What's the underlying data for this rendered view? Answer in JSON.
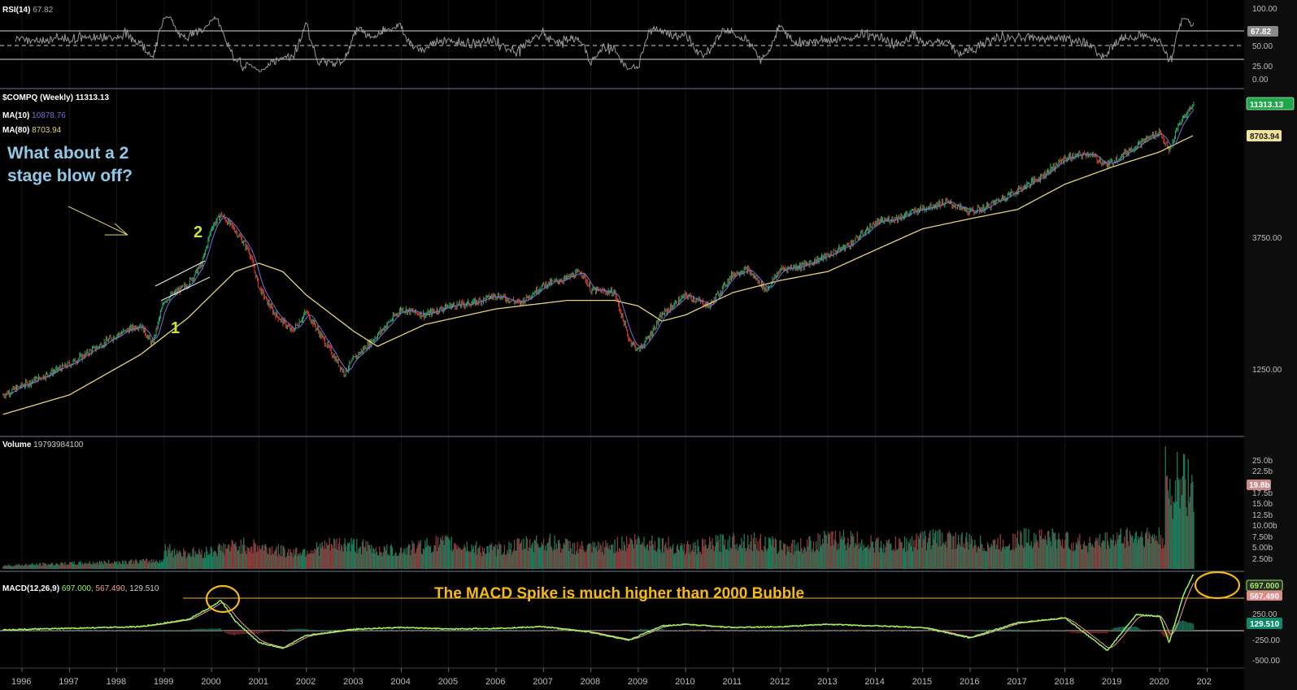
{
  "rsi": {
    "name": "RSI(14)",
    "value": "67.82",
    "ticks": [
      "100.00",
      "50.00",
      "25.00",
      "0.00"
    ],
    "badge": "67.82"
  },
  "price": {
    "name": "$COMPQ (Weekly)",
    "value": "11313.13",
    "ma10_name": "MA(10)",
    "ma10_value": "10878.76",
    "ma80_name": "MA(80)",
    "ma80_value": "8703.94",
    "ticks": [
      "3750.00",
      "1250.00"
    ],
    "badge_price": "11313.13",
    "badge_ma80": "8703.94"
  },
  "volume": {
    "name": "Volume",
    "value": "19793984100",
    "ticks": [
      "25.0b",
      "22.5b",
      "17.5b",
      "15.0b",
      "12.5b",
      "10.00b",
      "7.50b",
      "5.00b",
      "2.50b"
    ],
    "badge": "19.8b"
  },
  "macd": {
    "name": "MACD(12,26,9)",
    "macd_value": "697.000",
    "signal_value": "567.490",
    "hist_value": "129.510",
    "sep1": ",",
    "sep2": ", ",
    "ticks": [
      "250.00",
      "-250.00",
      "-500.00"
    ],
    "badge_macd": "697.000",
    "badge_signal": "567.490",
    "badge_hist": "129.510"
  },
  "annotations": {
    "blowoff_line1": "What about a 2",
    "blowoff_line2": "stage blow off?",
    "stage1": "1",
    "stage2": "2",
    "macd_note": "The MACD Spike is much higher than 2000 Bubble"
  },
  "colors": {
    "up": "#1fae6c",
    "down": "#d63b2f",
    "ma10": "#7b6fd8",
    "ma80": "#e6d27a",
    "macd": "#9cf25a",
    "signal": "#f2a0a0",
    "annotation_orange": "#f3b81c"
  },
  "chart_data": {
    "type": "line",
    "x_axis_years": [
      "1996",
      "1997",
      "1998",
      "1999",
      "2000",
      "2001",
      "2002",
      "2003",
      "2004",
      "2005",
      "2006",
      "2007",
      "2008",
      "2009",
      "2010",
      "2011",
      "2012",
      "2013",
      "2014",
      "2015",
      "2016",
      "2017",
      "2018",
      "2019",
      "2020",
      "202"
    ],
    "series": [
      {
        "name": "$COMPQ (Weekly)",
        "x": [
          1995.6,
          1996.0,
          1996.5,
          1997.0,
          1997.5,
          1998.0,
          1998.5,
          1998.75,
          1999.0,
          1999.5,
          1999.8,
          2000.0,
          2000.2,
          2000.5,
          2000.8,
          2001.0,
          2001.3,
          2001.7,
          2002.0,
          2002.5,
          2002.8,
          2003.0,
          2003.5,
          2004.0,
          2004.5,
          2005.0,
          2005.5,
          2006.0,
          2006.5,
          2007.0,
          2007.5,
          2007.8,
          2008.0,
          2008.5,
          2008.8,
          2009.0,
          2009.2,
          2009.5,
          2010.0,
          2010.5,
          2011.0,
          2011.3,
          2011.7,
          2012.0,
          2012.5,
          2013.0,
          2013.5,
          2014.0,
          2014.5,
          2015.0,
          2015.5,
          2016.0,
          2016.3,
          2016.8,
          2017.0,
          2017.5,
          2018.0,
          2018.5,
          2018.9,
          2019.0,
          2019.5,
          2020.0,
          2020.2,
          2020.4,
          2020.7
        ],
        "values": [
          1000,
          1080,
          1180,
          1290,
          1460,
          1650,
          1800,
          1520,
          2200,
          2520,
          3000,
          4050,
          4500,
          3950,
          3300,
          2450,
          2000,
          1700,
          2000,
          1450,
          1200,
          1350,
          1650,
          2050,
          1950,
          2100,
          2150,
          2300,
          2150,
          2500,
          2650,
          2800,
          2400,
          2350,
          1600,
          1450,
          1600,
          1950,
          2300,
          2100,
          2750,
          2850,
          2400,
          2850,
          2950,
          3200,
          3550,
          4200,
          4400,
          4750,
          5000,
          4600,
          4750,
          5300,
          5500,
          6200,
          7200,
          7500,
          6800,
          7000,
          8000,
          9000,
          7600,
          9500,
          11300
        ]
      },
      {
        "name": "MA(80)",
        "x": [
          1995.6,
          1997.0,
          1998.5,
          1999.5,
          2000.5,
          2001.0,
          2001.5,
          2002.0,
          2003.0,
          2003.5,
          2004.5,
          2006.0,
          2007.5,
          2008.5,
          2009.0,
          2009.5,
          2010.0,
          2011.0,
          2012.0,
          2013.0,
          2014.0,
          2015.0,
          2016.0,
          2017.0,
          2018.0,
          2019.0,
          2020.0,
          2020.7
        ],
        "values": [
          850,
          1000,
          1400,
          1900,
          2800,
          3000,
          2800,
          2300,
          1700,
          1500,
          1800,
          2050,
          2200,
          2200,
          2100,
          1850,
          1950,
          2350,
          2600,
          2800,
          3350,
          4000,
          4350,
          4700,
          5800,
          6700,
          7600,
          8700
        ]
      },
      {
        "name": "MACD(12,26,9)",
        "x": [
          1995.6,
          1998.5,
          1999.5,
          2000.0,
          2000.2,
          2000.5,
          2001.0,
          2001.5,
          2002.0,
          2003.0,
          2004.0,
          2005.0,
          2006.0,
          2007.0,
          2008.0,
          2008.8,
          2009.5,
          2010.0,
          2011.0,
          2012.0,
          2013.0,
          2014.0,
          2015.0,
          2016.0,
          2017.0,
          2018.0,
          2018.9,
          2019.5,
          2020.0,
          2020.2,
          2020.5,
          2020.7
        ],
        "values": [
          10,
          50,
          140,
          300,
          380,
          120,
          -150,
          -220,
          -60,
          20,
          40,
          20,
          30,
          50,
          -20,
          -120,
          60,
          80,
          40,
          50,
          80,
          60,
          40,
          -90,
          100,
          160,
          -250,
          200,
          180,
          -150,
          450,
          697
        ]
      }
    ],
    "rsi_ticks": [
      "100.00",
      "50.00",
      "25.00",
      "0.00"
    ],
    "price_ticks": [
      "3750.00",
      "1250.00"
    ],
    "volume_ticks": [
      "25.0b",
      "22.5b",
      "17.5b",
      "15.0b",
      "12.5b",
      "10.00b",
      "7.50b",
      "5.00b",
      "2.50b"
    ],
    "macd_ticks": [
      "250.00",
      "-250.00",
      "-500.00"
    ],
    "scale": "log"
  }
}
